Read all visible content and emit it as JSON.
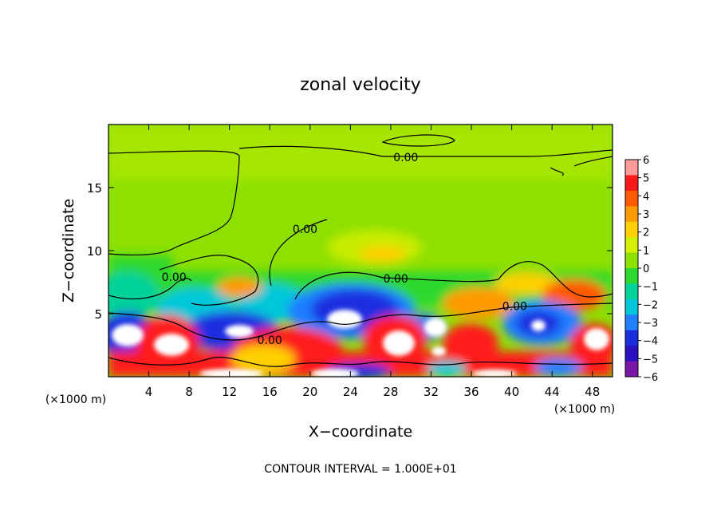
{
  "chart_data": {
    "type": "heatmap",
    "title": "zonal velocity",
    "xlabel": "X−coordinate",
    "ylabel": "Z−coordinate",
    "x_unit": "(×1000 m)",
    "x_unit_right": "(×1000 m)",
    "xlim": [
      0,
      50
    ],
    "ylim": [
      0,
      20
    ],
    "x_ticks": [
      4,
      8,
      12,
      16,
      20,
      24,
      28,
      32,
      36,
      40,
      44,
      48
    ],
    "y_ticks": [
      5,
      10,
      15
    ],
    "x_tick_labels": [
      "4",
      "8",
      "12",
      "16",
      "20",
      "24",
      "28",
      "32",
      "36",
      "40",
      "44",
      "48"
    ],
    "y_tick_labels": [
      "5",
      "10",
      "15"
    ],
    "colorbar": {
      "range": [
        -6,
        6
      ],
      "labels": [
        "6",
        "5",
        "4",
        "3",
        "2",
        "1",
        "0",
        "−1",
        "−2",
        "−3",
        "−4",
        "−5",
        "−6"
      ],
      "colors": [
        "#ff9a9a",
        "#ff1a1a",
        "#ff5a00",
        "#ff9a00",
        "#ffd000",
        "#d4f000",
        "#8ee000",
        "#2ed82e",
        "#00d29a",
        "#00c8d8",
        "#1f7fff",
        "#1a2ee0",
        "#2a10c0",
        "#7a16a8"
      ]
    },
    "contour_labels": [
      {
        "text": "0.00",
        "x": 29.5,
        "z": 17.4
      },
      {
        "text": "0.00",
        "x": 19.5,
        "z": 11.7
      },
      {
        "text": "0.00",
        "x": 6.5,
        "z": 7.9
      },
      {
        "text": "0.00",
        "x": 28.5,
        "z": 7.8
      },
      {
        "text": "0.00",
        "x": 40.3,
        "z": 5.6
      },
      {
        "text": "0.00",
        "x": 16.0,
        "z": 2.9
      }
    ],
    "footer": "CONTOUR INTERVAL = 1.000E+01"
  }
}
